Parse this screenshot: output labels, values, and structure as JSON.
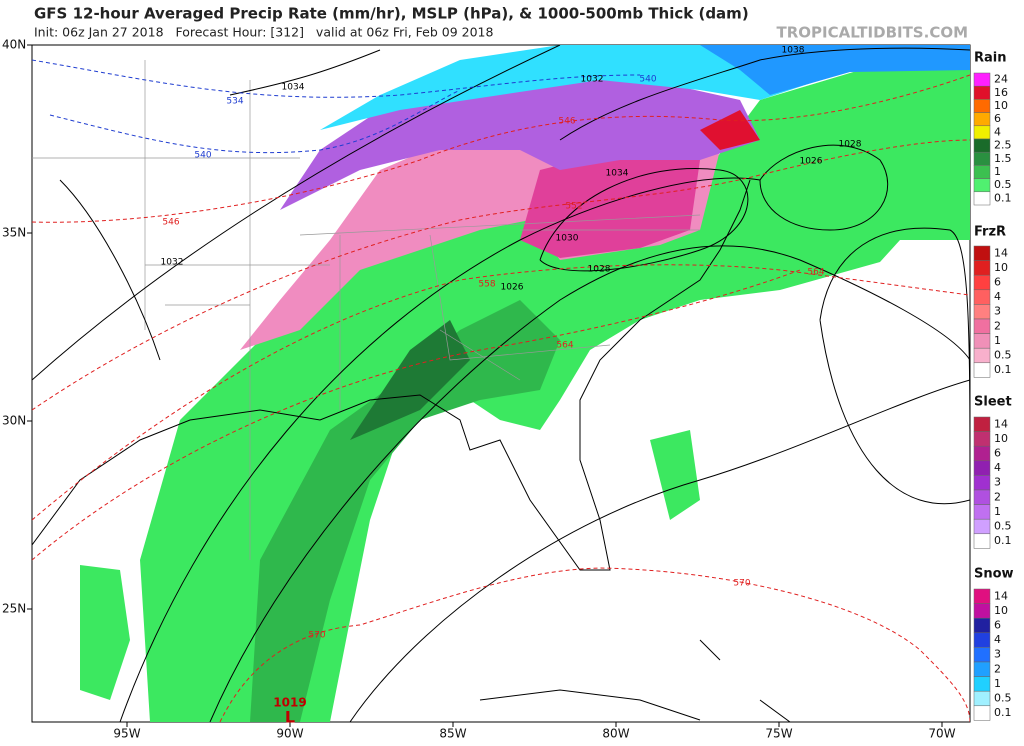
{
  "header": {
    "title": "GFS 12-hour Averaged Precip Rate (mm/hr), MSLP (hPa), & 1000-500mb Thick (dam)",
    "subtitle": "Init: 06z Jan 27 2018   Forecast Hour: [312]   valid at 06z Fri, Feb 09 2018",
    "brand": "TROPICALTIDBITS.COM"
  },
  "axes": {
    "lat_labels": [
      "40N",
      "35N",
      "30N",
      "25N"
    ],
    "lon_labels": [
      "95W",
      "90W",
      "85W",
      "80W",
      "75W",
      "70W"
    ]
  },
  "legends": [
    {
      "title": "Rain",
      "levels": [
        24,
        16,
        10,
        6,
        4,
        2.5,
        1.5,
        1,
        0.5,
        0.1
      ]
    },
    {
      "title": "FrzR",
      "levels": [
        14,
        10,
        6,
        4,
        3,
        2,
        1,
        0.5,
        0.1
      ]
    },
    {
      "title": "Sleet",
      "levels": [
        14,
        10,
        6,
        4,
        3,
        2,
        1,
        0.5,
        0.1
      ]
    },
    {
      "title": "Snow",
      "levels": [
        14,
        10,
        6,
        4,
        3,
        2,
        1,
        0.5,
        0.1
      ]
    }
  ],
  "contour_labels": {
    "pressure": [
      1038,
      1032,
      1034,
      1034,
      1028,
      1026,
      1030,
      1028,
      1026,
      1032
    ],
    "thickness": [
      534,
      540,
      540,
      546,
      546,
      552,
      558,
      564,
      564,
      570,
      570
    ]
  },
  "low": {
    "pressure": 1019,
    "label": "L"
  }
}
